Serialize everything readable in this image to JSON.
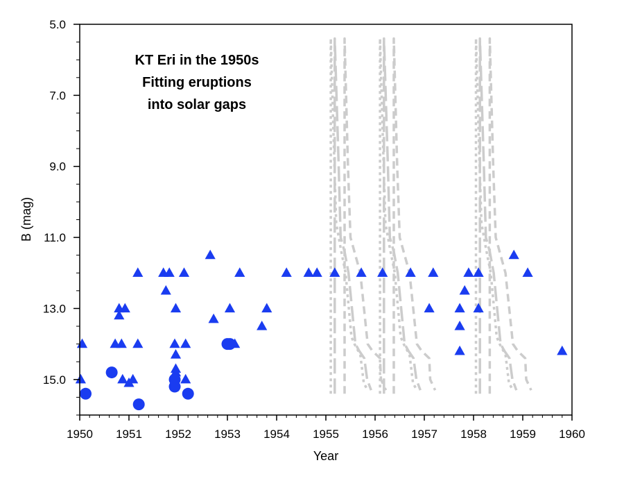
{
  "chart_data": {
    "type": "scatter",
    "title_lines": [
      "KT Eri in the 1950s",
      "Fitting eruptions",
      "into solar gaps"
    ],
    "xlabel": "Year",
    "ylabel": "B  (mag)",
    "xlim": [
      1950,
      1960
    ],
    "ylim": [
      16.0,
      5.0
    ],
    "y_inverted": true,
    "xticks": [
      "1950",
      "1951",
      "1952",
      "1953",
      "1954",
      "1955",
      "1956",
      "1957",
      "1958",
      "1959",
      "1960"
    ],
    "yticks": [
      "5.0",
      "7.0",
      "9.0",
      "11.0",
      "13.0",
      "15.0"
    ],
    "grid": false,
    "series": [
      {
        "marker": "triangle",
        "color": "#1a3cf0",
        "points": [
          [
            1950.02,
            15.0
          ],
          [
            1950.05,
            14.0
          ],
          [
            1950.72,
            14.0
          ],
          [
            1950.8,
            13.0
          ],
          [
            1950.8,
            13.2
          ],
          [
            1950.85,
            14.0
          ],
          [
            1950.87,
            15.0
          ],
          [
            1950.92,
            13.0
          ],
          [
            1951.0,
            15.1
          ],
          [
            1951.08,
            15.0
          ],
          [
            1951.18,
            12.0
          ],
          [
            1951.18,
            14.0
          ],
          [
            1951.7,
            12.0
          ],
          [
            1951.75,
            12.5
          ],
          [
            1951.82,
            12.0
          ],
          [
            1951.93,
            14.0
          ],
          [
            1951.95,
            13.0
          ],
          [
            1951.95,
            14.3
          ],
          [
            1951.95,
            14.7
          ],
          [
            1951.95,
            14.8
          ],
          [
            1952.12,
            12.0
          ],
          [
            1952.15,
            14.0
          ],
          [
            1952.15,
            15.0
          ],
          [
            1952.65,
            11.5
          ],
          [
            1952.72,
            13.3
          ],
          [
            1953.05,
            13.0
          ],
          [
            1953.15,
            14.0
          ],
          [
            1953.25,
            12.0
          ],
          [
            1953.7,
            13.5
          ],
          [
            1953.8,
            13.0
          ],
          [
            1954.2,
            12.0
          ],
          [
            1954.65,
            12.0
          ],
          [
            1954.82,
            12.0
          ],
          [
            1955.18,
            12.0
          ],
          [
            1955.72,
            12.0
          ],
          [
            1956.15,
            12.0
          ],
          [
            1956.72,
            12.0
          ],
          [
            1957.1,
            13.0
          ],
          [
            1957.18,
            12.0
          ],
          [
            1957.72,
            13.0
          ],
          [
            1957.72,
            13.5
          ],
          [
            1957.72,
            14.2
          ],
          [
            1957.82,
            12.5
          ],
          [
            1957.9,
            12.0
          ],
          [
            1958.1,
            12.0
          ],
          [
            1958.1,
            13.0
          ],
          [
            1958.82,
            11.5
          ],
          [
            1959.1,
            12.0
          ],
          [
            1959.8,
            14.2
          ]
        ]
      },
      {
        "marker": "circle",
        "color": "#1a3cf0",
        "points": [
          [
            1950.12,
            15.4
          ],
          [
            1950.65,
            14.8
          ],
          [
            1951.2,
            15.7
          ],
          [
            1951.93,
            15.0
          ],
          [
            1951.93,
            15.2
          ],
          [
            1952.2,
            15.4
          ],
          [
            1953.0,
            14.0
          ],
          [
            1953.05,
            14.0
          ]
        ]
      }
    ],
    "model_curves": {
      "color": "#cccccc",
      "dash_patterns": [
        "4 5",
        "22 7",
        "11 7"
      ],
      "eruption_years": [
        1955.1,
        1956.1,
        1958.05
      ],
      "offsets": [
        [
          [
            0.0,
            15.4
          ],
          [
            0.0,
            5.4
          ],
          [
            0.07,
            8.8
          ],
          [
            0.11,
            10.6
          ],
          [
            0.2,
            11.3
          ],
          [
            0.3,
            12.0
          ],
          [
            0.42,
            13.8
          ],
          [
            0.48,
            14.0
          ],
          [
            0.6,
            14.3
          ],
          [
            0.67,
            15.1
          ],
          [
            0.75,
            15.3
          ]
        ],
        [
          [
            0.08,
            15.4
          ],
          [
            0.08,
            5.4
          ],
          [
            0.16,
            9.0
          ],
          [
            0.2,
            11.0
          ],
          [
            0.28,
            11.4
          ],
          [
            0.36,
            12.0
          ],
          [
            0.5,
            14.0
          ],
          [
            0.58,
            14.2
          ],
          [
            0.68,
            14.4
          ],
          [
            0.74,
            15.0
          ],
          [
            0.82,
            15.3
          ]
        ],
        [
          [
            0.28,
            15.4
          ],
          [
            0.28,
            5.4
          ],
          [
            0.35,
            9.0
          ],
          [
            0.4,
            11.0
          ],
          [
            0.5,
            11.5
          ],
          [
            0.6,
            12.0
          ],
          [
            0.75,
            14.0
          ],
          [
            0.85,
            14.2
          ],
          [
            1.0,
            14.4
          ],
          [
            1.02,
            15.0
          ],
          [
            1.12,
            15.3
          ]
        ]
      ]
    }
  }
}
